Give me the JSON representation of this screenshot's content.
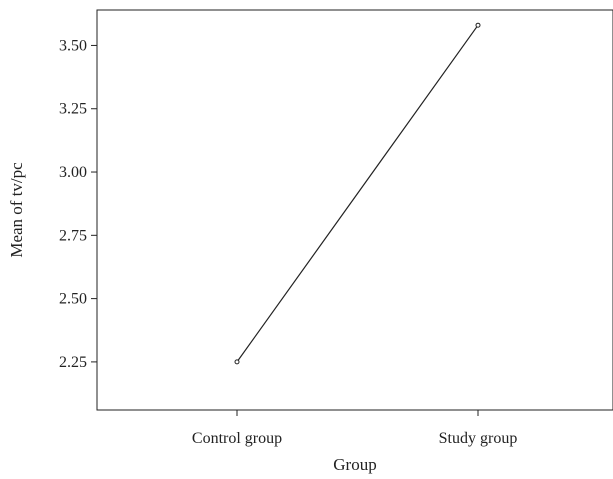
{
  "chart_data": {
    "type": "line",
    "categories": [
      "Control group",
      "Study group"
    ],
    "series": [
      {
        "values": [
          2.25,
          3.58
        ]
      }
    ],
    "xlabel": "Group",
    "ylabel": "Mean of tv/pc",
    "ylim": [
      2.06,
      3.64
    ],
    "yticks": [
      2.25,
      2.5,
      2.75,
      3.0,
      3.25,
      3.5
    ],
    "ytick_labels": [
      "2.25",
      "2.50",
      "2.75",
      "3.00",
      "3.25",
      "3.50"
    ],
    "grid": false,
    "legend": "none",
    "line_color": "#222222",
    "marker": "open-circle"
  }
}
